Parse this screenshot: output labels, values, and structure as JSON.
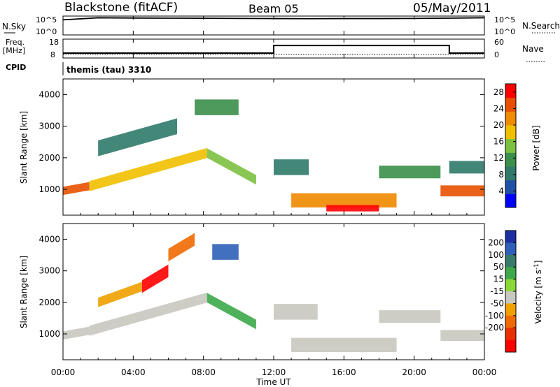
{
  "header": {
    "station": "Blackstone (fitACF)",
    "beam": "Beam 05",
    "date": "05/May/2011"
  },
  "panel_labels": {
    "nsky": "N.Sky",
    "nsky_hi": "10^5",
    "nsky_lo": "10^0",
    "nsearch": "N.Search",
    "nsearch_hi": "10^5",
    "nsearch_lo": "10^0",
    "freq_line1": "Freq.",
    "freq_line2": "[MHz]",
    "freq_hi": "18",
    "freq_lo": "8",
    "nave": "Nave",
    "nave_hi": "60",
    "nave_lo": "0",
    "cpid": "CPID",
    "cpid_value": "themis (tau) 3310"
  },
  "colors": {
    "power": [
      "#0000ff",
      "#1f50a8",
      "#2f7a6a",
      "#3a8f4a",
      "#7cc040",
      "#f0c000",
      "#f08a00",
      "#e85000",
      "#ff0000"
    ],
    "velocity": [
      "#1c2fa0",
      "#2f5fb8",
      "#3a7a6a",
      "#3da84a",
      "#8ad838",
      "#c0c0b8",
      "#f0a000",
      "#f06a00",
      "#e83000",
      "#ff0000"
    ],
    "ground": "#c8c8c0"
  },
  "chart_data": [
    {
      "type": "line",
      "title": "N.Sky",
      "x": [
        "00:00",
        "02:00",
        "04:00",
        "06:00",
        "08:00",
        "10:00",
        "12:00",
        "14:00",
        "16:00",
        "18:00",
        "20:00",
        "22:00",
        "24:00"
      ],
      "series": [
        {
          "name": "N.Sky",
          "values": [
            10000,
            35000,
            30000,
            28000,
            26000,
            24000,
            22000,
            20000,
            22000,
            22000,
            24000,
            28000,
            35000
          ]
        }
      ],
      "ylabel": "N.Sky",
      "ylim": [
        1,
        100000
      ],
      "yscale": "log"
    },
    {
      "type": "line",
      "title": "Freq.",
      "x": [
        "00:00",
        "12:00",
        "12:00",
        "22:00",
        "22:00",
        "24:00"
      ],
      "series": [
        {
          "name": "Freq.",
          "values": [
            10.6,
            10.6,
            14.6,
            14.6,
            10.6,
            10.6
          ]
        },
        {
          "name": "Nave",
          "values": [
            12,
            12,
            12,
            12,
            12,
            12
          ]
        }
      ],
      "ylabel": "[MHz]",
      "ylim": [
        8,
        18
      ],
      "y2lim": [
        0,
        60
      ]
    },
    {
      "type": "heatmap",
      "title": "Power [dB]",
      "xlabel": "Time UT",
      "ylabel": "Slant Range [km]",
      "x_ticks": [
        "00:00",
        "04:00",
        "08:00",
        "12:00",
        "16:00",
        "20:00",
        "00:00"
      ],
      "y_ticks": [
        1000,
        2000,
        3000,
        4000
      ],
      "xlim": [
        0,
        24
      ],
      "ylim": [
        180,
        4500
      ],
      "colorbar_label": "Power [dB]",
      "colorbar_ticks": [
        4,
        8,
        12,
        16,
        20,
        24,
        28
      ],
      "colorbar_range": [
        0,
        30
      ],
      "regions": [
        {
          "x": [
            0.0,
            1.5
          ],
          "y_center": [
            950,
            1100
          ],
          "thickness": 260,
          "value": 24
        },
        {
          "x": [
            1.5,
            8.2
          ],
          "y_center": [
            1100,
            2150
          ],
          "thickness": 320,
          "value": 18
        },
        {
          "x": [
            8.2,
            11.0
          ],
          "y_center": [
            2150,
            1300
          ],
          "thickness": 300,
          "value": 14
        },
        {
          "x": [
            2.0,
            6.5
          ],
          "y_center": [
            2300,
            3000
          ],
          "thickness": 500,
          "value": 8
        },
        {
          "x": [
            7.5,
            10.0
          ],
          "y_center": [
            3600,
            3600
          ],
          "thickness": 500,
          "value": 10
        },
        {
          "x": [
            12.0,
            14.0
          ],
          "y_center": [
            1700,
            1700
          ],
          "thickness": 500,
          "value": 9
        },
        {
          "x": [
            13.0,
            19.0
          ],
          "y_center": [
            650,
            650
          ],
          "thickness": 450,
          "value": 20
        },
        {
          "x": [
            15.0,
            18.0
          ],
          "y_center": [
            400,
            400
          ],
          "thickness": 200,
          "value": 28
        },
        {
          "x": [
            18.0,
            21.5
          ],
          "y_center": [
            1550,
            1550
          ],
          "thickness": 400,
          "value": 12
        },
        {
          "x": [
            21.5,
            24.0
          ],
          "y_center": [
            950,
            950
          ],
          "thickness": 350,
          "value": 24
        },
        {
          "x": [
            22.0,
            24.0
          ],
          "y_center": [
            1700,
            1700
          ],
          "thickness": 400,
          "value": 9
        }
      ]
    },
    {
      "type": "heatmap",
      "title": "Velocity [m s-1]",
      "xlabel": "Time UT",
      "ylabel": "Slant Range [km]",
      "x_ticks": [
        "00:00",
        "04:00",
        "08:00",
        "12:00",
        "16:00",
        "20:00",
        "00:00"
      ],
      "y_ticks": [
        1000,
        2000,
        3000,
        4000
      ],
      "xlim": [
        0,
        24
      ],
      "ylim": [
        180,
        4500
      ],
      "colorbar_label": "Velocity [m s",
      "colorbar_label_sup": "-1",
      "colorbar_label_end": "]",
      "colorbar_ticks": [
        200,
        100,
        50,
        15,
        -15,
        -50,
        -100,
        -200
      ],
      "regions": [
        {
          "x": [
            0.0,
            1.5
          ],
          "y_center": [
            950,
            1100
          ],
          "thickness": 260,
          "value": 0
        },
        {
          "x": [
            1.5,
            8.2
          ],
          "y_center": [
            1100,
            2150
          ],
          "thickness": 320,
          "value": 0
        },
        {
          "x": [
            8.2,
            11.0
          ],
          "y_center": [
            2150,
            1300
          ],
          "thickness": 300,
          "value": 30
        },
        {
          "x": [
            2.0,
            4.5
          ],
          "y_center": [
            2000,
            2500
          ],
          "thickness": 300,
          "value": -100
        },
        {
          "x": [
            4.5,
            6.0
          ],
          "y_center": [
            2500,
            3000
          ],
          "thickness": 400,
          "value": -210
        },
        {
          "x": [
            6.0,
            7.5
          ],
          "y_center": [
            3500,
            4000
          ],
          "thickness": 400,
          "value": -150
        },
        {
          "x": [
            8.5,
            10.0
          ],
          "y_center": [
            3600,
            3600
          ],
          "thickness": 500,
          "value": 120
        },
        {
          "x": [
            12.0,
            14.5
          ],
          "y_center": [
            1700,
            1700
          ],
          "thickness": 500,
          "value": 0
        },
        {
          "x": [
            13.0,
            19.0
          ],
          "y_center": [
            650,
            650
          ],
          "thickness": 450,
          "value": 0
        },
        {
          "x": [
            18.0,
            21.5
          ],
          "y_center": [
            1550,
            1550
          ],
          "thickness": 400,
          "value": 0
        },
        {
          "x": [
            21.5,
            24.0
          ],
          "y_center": [
            950,
            950
          ],
          "thickness": 350,
          "value": 0
        }
      ]
    }
  ]
}
